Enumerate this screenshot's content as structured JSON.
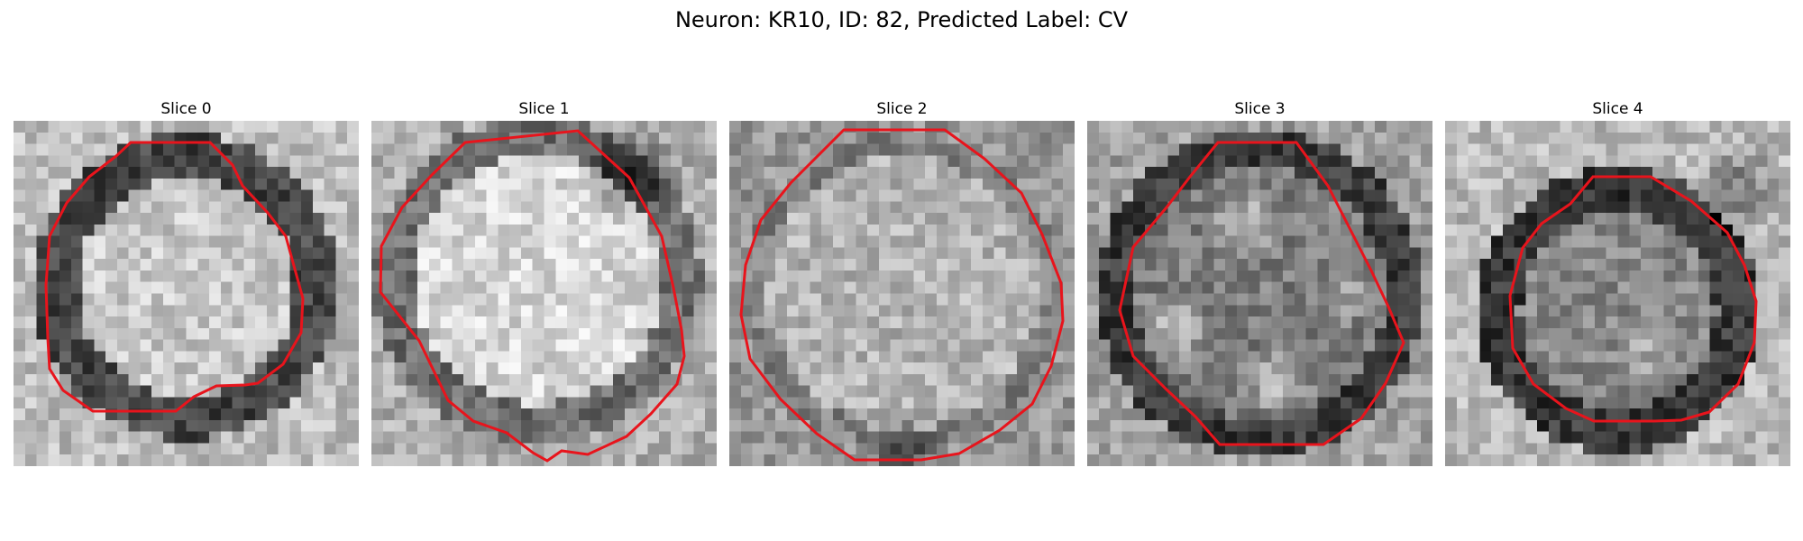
{
  "figure": {
    "title": "Neuron: KR10, ID: 82, Predicted Label: CV",
    "contour_color": "#e8141c",
    "panels": [
      {
        "title": "Slice 0"
      },
      {
        "title": "Slice 1"
      },
      {
        "title": "Slice 2"
      },
      {
        "title": "Slice 3"
      },
      {
        "title": "Slice 4"
      }
    ]
  }
}
